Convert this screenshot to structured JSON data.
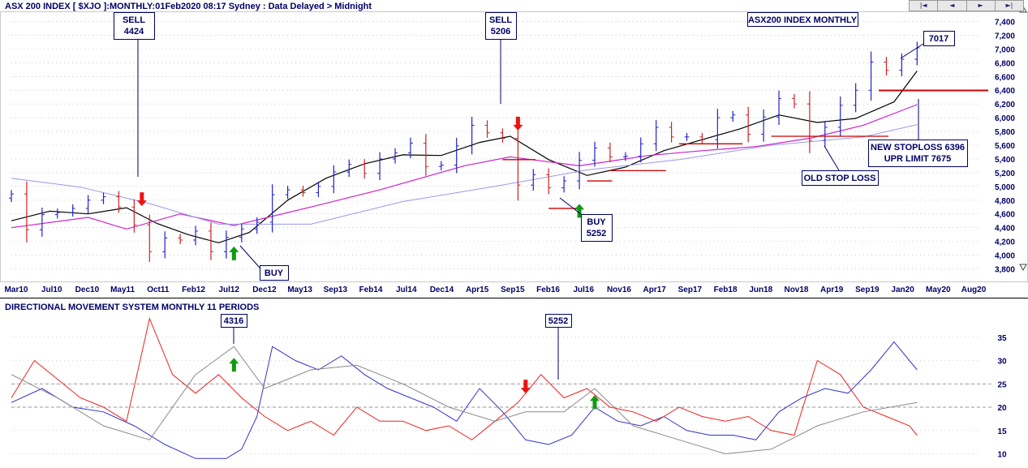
{
  "header": {
    "title": "ASX 200 INDEX [ $XJO ]:MONTHLY:01Feb2020 08:17 Sydney : Data Delayed > Midnight",
    "nav": [
      "|◄",
      "◄",
      "►",
      "►|"
    ]
  },
  "colors": {
    "navy": "#000066",
    "price_up": "#2222cc",
    "price_down": "#cc2222",
    "ma_short": "#000000",
    "ma_medium": "#cc22cc",
    "ma_long": "#9999e6",
    "stop_line": "#cc0000",
    "arrow_buy": "#119911",
    "arrow_sell": "#ee1111",
    "dmi_plus": "#3333cc",
    "dmi_minus": "#ee2222",
    "adx": "#8a8a8a",
    "grid": "#aaaaaa"
  },
  "chart_data": [
    {
      "type": "ohlc",
      "title": "ASX200 INDEX MONTHLY",
      "x_tick_labels": [
        "Mar10",
        "Jul10",
        "Dec10",
        "May11",
        "Oct11",
        "Feb12",
        "Jul12",
        "Dec12",
        "May13",
        "Sep13",
        "Feb14",
        "Jul14",
        "Dec14",
        "Apr15",
        "Sep15",
        "Feb16",
        "Jul16",
        "Nov16",
        "Apr17",
        "Sep17",
        "Feb18",
        "Jun18",
        "Nov18",
        "Apr19",
        "Sep19",
        "Jan20",
        "May20",
        "Aug20"
      ],
      "y_ticks": [
        3800,
        4000,
        4200,
        4400,
        4600,
        4800,
        5000,
        5200,
        5400,
        5600,
        5800,
        6000,
        6200,
        6400,
        6600,
        6800,
        7000,
        7200,
        7400
      ],
      "ylim": [
        3700,
        7500
      ],
      "x_range": [
        "2010-03",
        "2020-09"
      ],
      "series": [
        {
          "name": "close",
          "x": [
            "2010-03",
            "2010-05",
            "2010-07",
            "2010-09",
            "2010-11",
            "2011-01",
            "2011-03",
            "2011-05",
            "2011-07",
            "2011-09",
            "2011-11",
            "2012-01",
            "2012-03",
            "2012-05",
            "2012-07",
            "2012-09",
            "2012-11",
            "2013-01",
            "2013-03",
            "2013-05",
            "2013-07",
            "2013-09",
            "2013-11",
            "2014-01",
            "2014-03",
            "2014-05",
            "2014-07",
            "2014-09",
            "2014-11",
            "2015-01",
            "2015-03",
            "2015-05",
            "2015-07",
            "2015-09",
            "2015-11",
            "2016-01",
            "2016-03",
            "2016-05",
            "2016-07",
            "2016-09",
            "2016-11",
            "2017-01",
            "2017-03",
            "2017-05",
            "2017-07",
            "2017-09",
            "2017-11",
            "2018-01",
            "2018-03",
            "2018-05",
            "2018-07",
            "2018-09",
            "2018-11",
            "2019-01",
            "2019-03",
            "2019-05",
            "2019-07",
            "2019-09",
            "2019-11",
            "2020-01"
          ],
          "y": [
            4890,
            4370,
            4590,
            4620,
            4680,
            4800,
            4850,
            4700,
            4440,
            4050,
            4250,
            4220,
            4350,
            4050,
            4260,
            4380,
            4480,
            4880,
            4950,
            4910,
            5000,
            5210,
            5320,
            5190,
            5400,
            5490,
            5630,
            5290,
            5310,
            5590,
            5890,
            5780,
            5700,
            5020,
            5170,
            4980,
            5080,
            5380,
            5560,
            5430,
            5440,
            5620,
            5860,
            5720,
            5720,
            5680,
            6000,
            6040,
            5760,
            6010,
            6280,
            6200,
            5670,
            5860,
            6180,
            6400,
            6810,
            6690,
            6850,
            7017
          ]
        },
        {
          "name": "ma_short",
          "x": [
            "2010-03",
            "2010-08",
            "2011-01",
            "2011-06",
            "2011-10",
            "2012-02",
            "2012-06",
            "2012-10",
            "2013-03",
            "2013-08",
            "2014-01",
            "2014-06",
            "2014-11",
            "2015-04",
            "2015-08",
            "2016-01",
            "2016-06",
            "2016-11",
            "2017-04",
            "2017-09",
            "2018-02",
            "2018-07",
            "2018-12",
            "2019-05",
            "2019-10",
            "2020-01"
          ],
          "y": [
            4500,
            4640,
            4600,
            4690,
            4460,
            4300,
            4180,
            4330,
            4800,
            5120,
            5330,
            5460,
            5450,
            5640,
            5730,
            5390,
            5160,
            5280,
            5520,
            5680,
            5840,
            6040,
            5930,
            5990,
            6230,
            6680
          ]
        },
        {
          "name": "ma_medium",
          "x": [
            "2010-03",
            "2011-01",
            "2011-06",
            "2012-01",
            "2012-08",
            "2013-06",
            "2014-03",
            "2015-02",
            "2015-08",
            "2016-05",
            "2017-02",
            "2017-09",
            "2018-04",
            "2018-11",
            "2019-06",
            "2020-01"
          ],
          "y": [
            4400,
            4550,
            4380,
            4600,
            4430,
            4700,
            4950,
            5300,
            5430,
            5300,
            5450,
            5520,
            5580,
            5700,
            5890,
            6190
          ]
        },
        {
          "name": "ma_long",
          "x": [
            "2010-03",
            "2010-12",
            "2011-09",
            "2012-06",
            "2013-06",
            "2014-06",
            "2015-06",
            "2016-06",
            "2017-06",
            "2018-06",
            "2019-06",
            "2020-01"
          ],
          "y": [
            5120,
            4990,
            4750,
            4450,
            4450,
            4780,
            5000,
            5240,
            5390,
            5600,
            5720,
            5900
          ]
        }
      ],
      "stop_lines": [
        {
          "x": [
            "2015-07",
            "2015-10"
          ],
          "y": 5390
        },
        {
          "x": [
            "2016-01",
            "2016-04"
          ],
          "y": 4680
        },
        {
          "x": [
            "2016-06",
            "2016-08"
          ],
          "y": 5080
        },
        {
          "x": [
            "2016-09",
            "2017-03"
          ],
          "y": 5230
        },
        {
          "x": [
            "2017-06",
            "2018-01"
          ],
          "y": 5620
        },
        {
          "x": [
            "2018-06",
            "2019-08"
          ],
          "y": 5730
        },
        {
          "x": [
            "2019-08",
            "2020-09"
          ],
          "y": 6396
        }
      ],
      "arrows": [
        {
          "dir": "down",
          "x": "2011-08",
          "y": 4820
        },
        {
          "dir": "down",
          "x": "2015-09",
          "y": 5920
        },
        {
          "dir": "up",
          "x": "2012-08",
          "y": 4020
        },
        {
          "dir": "up",
          "x": "2016-05",
          "y": 4640
        }
      ],
      "labels": [
        {
          "line1": "SELL",
          "line2": "4424"
        },
        {
          "line1": "SELL",
          "line2": "5206"
        },
        {
          "line1": "BUY",
          "line2": ""
        },
        {
          "line1": "BUY",
          "line2": "5252"
        },
        {
          "line1": "7017",
          "line2": ""
        },
        {
          "line1": "NEW STOPLOSS 6396",
          "line2": "UPR LIMIT 7675"
        },
        {
          "line1": "OLD STOP LOSS",
          "line2": ""
        }
      ]
    },
    {
      "type": "line",
      "title": "DIRECTIONAL MOVEMENT SYSTEM MONTHLY 11 PERIODS",
      "y_ticks": [
        10,
        15,
        20,
        25,
        30,
        35
      ],
      "ylim": [
        8,
        40
      ],
      "reference_lines": [
        20,
        25
      ],
      "series": [
        {
          "name": "+DI",
          "x": [
            "2010-03",
            "2010-07",
            "2010-11",
            "2011-03",
            "2011-07",
            "2011-11",
            "2012-03",
            "2012-07",
            "2012-09",
            "2012-11",
            "2013-01",
            "2013-04",
            "2013-07",
            "2013-10",
            "2014-01",
            "2014-04",
            "2014-07",
            "2014-10",
            "2015-01",
            "2015-04",
            "2015-07",
            "2015-10",
            "2016-01",
            "2016-04",
            "2016-07",
            "2016-10",
            "2017-01",
            "2017-04",
            "2017-07",
            "2017-10",
            "2018-01",
            "2018-04",
            "2018-07",
            "2018-10",
            "2019-01",
            "2019-04",
            "2019-07",
            "2019-10",
            "2020-01"
          ],
          "y": [
            21,
            24,
            20,
            19,
            16,
            12,
            9,
            9,
            11,
            18,
            33,
            30,
            28,
            31,
            27,
            24,
            22,
            20,
            17,
            24,
            19,
            13,
            12,
            14,
            20,
            17,
            16,
            18,
            15,
            14,
            14,
            13,
            19,
            22,
            24,
            23,
            28,
            34,
            28
          ]
        },
        {
          "name": "-DI",
          "x": [
            "2010-03",
            "2010-06",
            "2010-09",
            "2010-12",
            "2011-03",
            "2011-06",
            "2011-09",
            "2011-12",
            "2012-03",
            "2012-06",
            "2012-09",
            "2012-12",
            "2013-03",
            "2013-06",
            "2013-09",
            "2013-12",
            "2014-03",
            "2014-06",
            "2014-09",
            "2014-12",
            "2015-03",
            "2015-06",
            "2015-09",
            "2015-12",
            "2016-03",
            "2016-06",
            "2016-09",
            "2016-12",
            "2017-03",
            "2017-06",
            "2017-09",
            "2017-12",
            "2018-03",
            "2018-06",
            "2018-09",
            "2018-12",
            "2019-03",
            "2019-06",
            "2019-09",
            "2019-12",
            "2020-01"
          ],
          "y": [
            22,
            30,
            26,
            22,
            20,
            17,
            39,
            27,
            23,
            27,
            22,
            18,
            15,
            17,
            14,
            20,
            17,
            17,
            15,
            16,
            13,
            17,
            21,
            27,
            22,
            24,
            20,
            19,
            17,
            20,
            18,
            17,
            18,
            15,
            14,
            30,
            27,
            20,
            18,
            16,
            14
          ]
        },
        {
          "name": "ADX",
          "x": [
            "2010-03",
            "2010-09",
            "2011-03",
            "2011-09",
            "2012-03",
            "2012-08",
            "2012-12",
            "2013-06",
            "2013-12",
            "2014-06",
            "2014-12",
            "2015-06",
            "2015-10",
            "2016-03",
            "2016-07",
            "2016-12",
            "2017-06",
            "2017-12",
            "2018-06",
            "2018-12",
            "2019-06",
            "2020-01"
          ],
          "y": [
            27,
            22,
            16,
            13,
            27,
            33,
            24,
            28,
            29,
            25,
            20,
            17,
            19,
            19,
            24,
            16,
            13,
            10,
            11,
            16,
            19,
            21
          ]
        }
      ],
      "arrows": [
        {
          "dir": "up",
          "x": "2012-08",
          "y": 29
        },
        {
          "dir": "down",
          "x": "2015-10",
          "y": 24.5
        },
        {
          "dir": "up",
          "x": "2016-07",
          "y": 21
        }
      ],
      "labels": [
        {
          "line1": "4316"
        },
        {
          "line1": "5252"
        }
      ]
    }
  ]
}
